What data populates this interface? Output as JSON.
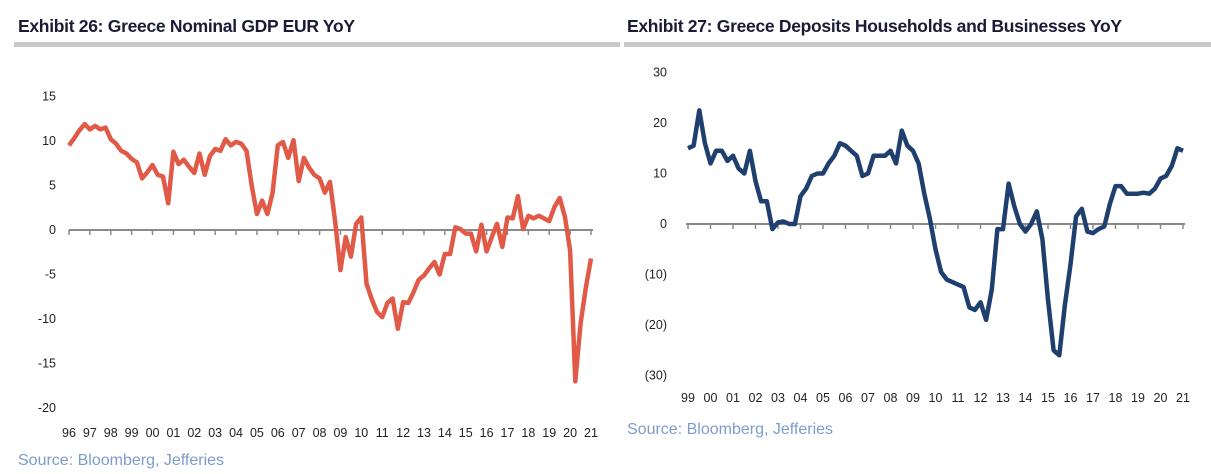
{
  "chart_data": [
    {
      "type": "line",
      "title": "Exhibit 26: Greece Nominal GDP EUR YoY",
      "source": "Source: Bloomberg, Jefferies",
      "frequency": "quarterly",
      "x_start": "1996Q1",
      "x_end": "2021Q1",
      "xlabel": "",
      "ylabel": "",
      "ylim": [
        -20,
        15
      ],
      "y_ticks": [
        "15",
        "10",
        "5",
        "0",
        "-5",
        "-10",
        "-15",
        "-20"
      ],
      "y_tick_values": [
        15,
        10,
        5,
        0,
        -5,
        -10,
        -15,
        -20
      ],
      "x_ticks": [
        "96",
        "97",
        "98",
        "99",
        "00",
        "01",
        "02",
        "03",
        "04",
        "05",
        "06",
        "07",
        "08",
        "09",
        "10",
        "11",
        "12",
        "13",
        "14",
        "15",
        "16",
        "17",
        "18",
        "19",
        "20",
        "21"
      ],
      "grid": false,
      "color": "#e05a47",
      "values": [
        9.5,
        10.3,
        11.2,
        11.9,
        11.3,
        11.7,
        11.3,
        11.5,
        10.2,
        9.7,
        8.9,
        8.6,
        8.0,
        7.6,
        5.8,
        6.5,
        7.3,
        6.2,
        6.0,
        3.0,
        8.8,
        7.4,
        7.9,
        7.1,
        6.4,
        8.6,
        6.2,
        8.3,
        9.1,
        8.9,
        10.2,
        9.5,
        9.9,
        9.7,
        8.9,
        5.0,
        1.8,
        3.3,
        1.8,
        4.2,
        9.5,
        9.9,
        8.1,
        10.1,
        5.5,
        8.1,
        7.0,
        6.2,
        5.8,
        4.2,
        5.4,
        0.9,
        -4.5,
        -0.8,
        -3.0,
        0.7,
        1.4,
        -6.0,
        -7.8,
        -9.2,
        -9.8,
        -8.2,
        -7.7,
        -11.1,
        -8.1,
        -8.2,
        -7.0,
        -5.6,
        -5.1,
        -4.3,
        -3.6,
        -5.0,
        -2.7,
        -2.7,
        0.3,
        0.1,
        -0.4,
        -0.4,
        -2.4,
        0.6,
        -2.4,
        -0.8,
        0.7,
        -1.9,
        1.4,
        1.3,
        3.8,
        0.1,
        1.6,
        1.3,
        1.6,
        1.3,
        1.0,
        2.6,
        3.6,
        1.5,
        -2.3,
        -17.0,
        -10.5,
        -6.5,
        -3.2
      ]
    },
    {
      "type": "line",
      "title": "Exhibit 27: Greece Deposits Households and Businesses YoY",
      "source": "Source: Bloomberg, Jefferies",
      "frequency": "quarterly samples of monthly series",
      "xlabel": "",
      "ylabel": "",
      "ylim": [
        -30,
        30
      ],
      "y_ticks": [
        "30",
        "20",
        "10",
        "0",
        "(10)",
        "(20)",
        "(30)"
      ],
      "y_tick_values": [
        30,
        20,
        10,
        0,
        -10,
        -20,
        -30
      ],
      "x_ticks": [
        "99",
        "00",
        "01",
        "02",
        "03",
        "04",
        "05",
        "06",
        "07",
        "08",
        "09",
        "10",
        "11",
        "12",
        "13",
        "14",
        "15",
        "16",
        "17",
        "18",
        "19",
        "20",
        "21"
      ],
      "grid": false,
      "color": "#1f3f6e",
      "x": [
        "1999-01",
        "1999-04",
        "1999-07",
        "1999-10",
        "2000-01",
        "2000-04",
        "2000-07",
        "2000-10",
        "2001-01",
        "2001-04",
        "2001-07",
        "2001-10",
        "2002-01",
        "2002-04",
        "2002-07",
        "2002-10",
        "2003-01",
        "2003-04",
        "2003-07",
        "2003-10",
        "2004-01",
        "2004-04",
        "2004-07",
        "2004-10",
        "2005-01",
        "2005-04",
        "2005-07",
        "2005-10",
        "2006-01",
        "2006-04",
        "2006-07",
        "2006-10",
        "2007-01",
        "2007-04",
        "2007-07",
        "2007-10",
        "2008-01",
        "2008-04",
        "2008-07",
        "2008-10",
        "2009-01",
        "2009-04",
        "2009-07",
        "2009-10",
        "2010-01",
        "2010-04",
        "2010-07",
        "2010-10",
        "2011-01",
        "2011-04",
        "2011-07",
        "2011-10",
        "2012-01",
        "2012-04",
        "2012-07",
        "2012-10",
        "2013-01",
        "2013-04",
        "2013-07",
        "2013-10",
        "2014-01",
        "2014-04",
        "2014-07",
        "2014-10",
        "2015-01",
        "2015-04",
        "2015-07",
        "2015-10",
        "2016-01",
        "2016-04",
        "2016-07",
        "2016-10",
        "2017-01",
        "2017-04",
        "2017-07",
        "2017-10",
        "2018-01",
        "2018-04",
        "2018-07",
        "2018-10",
        "2019-01",
        "2019-04",
        "2019-07",
        "2019-10",
        "2020-01",
        "2020-04",
        "2020-07",
        "2020-10",
        "2021-01"
      ],
      "values": [
        15,
        15.5,
        22.5,
        16,
        12,
        14.5,
        14.5,
        12.5,
        13.5,
        11,
        10,
        14.5,
        8.5,
        4.5,
        4.5,
        -1,
        0.3,
        0.5,
        0,
        0,
        5.5,
        7,
        9.5,
        10,
        10,
        12,
        13.5,
        16,
        15.5,
        14.5,
        13.5,
        9.5,
        10,
        13.5,
        13.5,
        13.5,
        14.5,
        12,
        18.5,
        15.5,
        14.5,
        12,
        6,
        1,
        -5,
        -9.5,
        -11,
        -11.5,
        -12,
        -12.5,
        -16.5,
        -17,
        -15.5,
        -19,
        -13,
        -1,
        -1,
        8,
        3.5,
        0,
        -1.5,
        0,
        2.5,
        -3,
        -15,
        -25,
        -26,
        -16,
        -8,
        1.5,
        3,
        -1.5,
        -1.8,
        -1,
        -0.5,
        4,
        7.5,
        7.5,
        6,
        6,
        6,
        6.2,
        6,
        7,
        9,
        9.5,
        11.5,
        15,
        14.5
      ]
    }
  ]
}
